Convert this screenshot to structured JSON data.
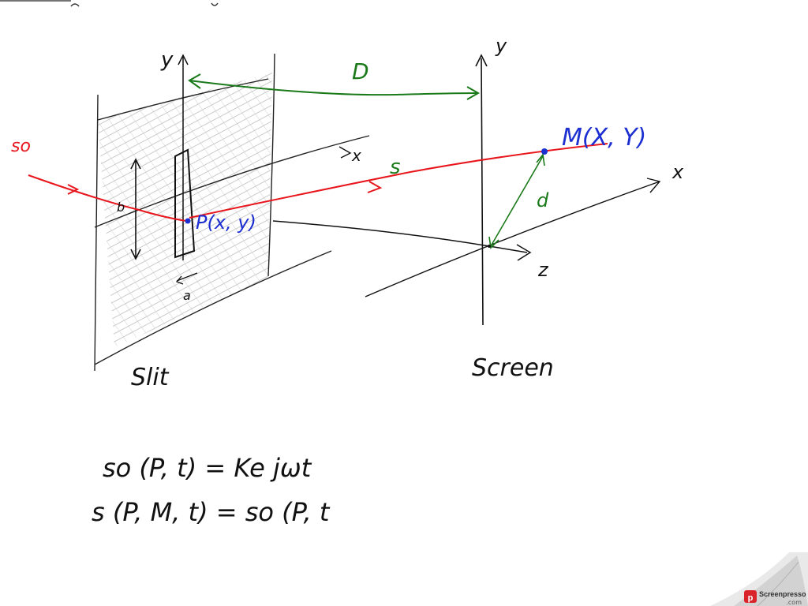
{
  "diagram": {
    "labels": {
      "source_wave": "so",
      "slit_y_axis": "y",
      "slit_x_axis": "x",
      "distance": "D",
      "screen_y_axis": "y",
      "screen_x_axis": "x",
      "z_axis": "z",
      "path": "s",
      "point_m": "M(X, Y)",
      "point_p": "P(x, y)",
      "slit_height": "b",
      "slit_width": "a",
      "distance_d": "d",
      "slit_caption": "Slit",
      "screen_caption": "Screen"
    },
    "equations": [
      "so (P, t) = Ke jωt",
      "s (P, M, t)  =  so (P, t"
    ],
    "colors": {
      "ink": "#111111",
      "red": "#e8161c",
      "green": "#1a7a1a",
      "blue": "#1c2fd0",
      "hatch": "#b8b8b8"
    }
  },
  "watermark": {
    "brand": "Screenpresso",
    "domain": ".com",
    "icon": "screenpresso-logo-icon"
  }
}
